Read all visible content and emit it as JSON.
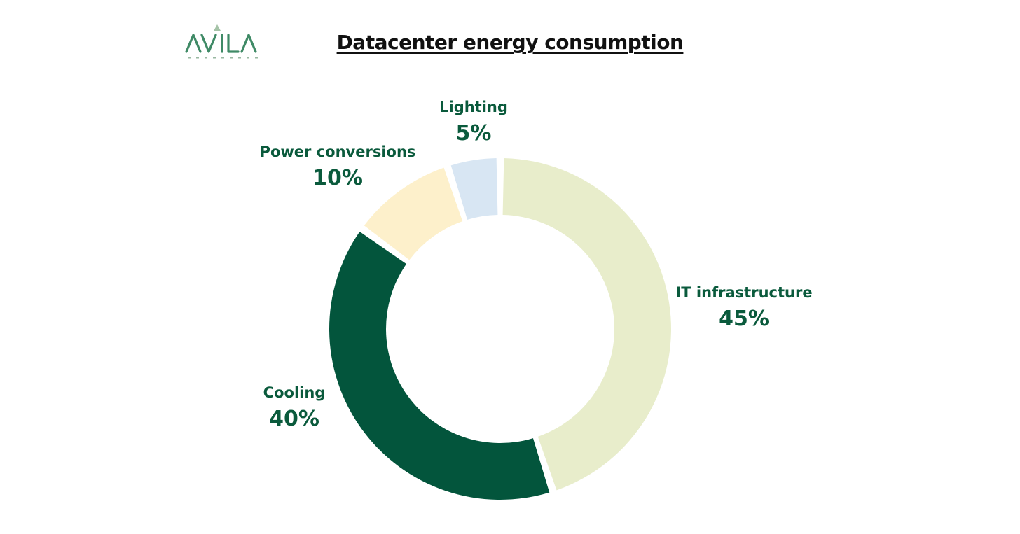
{
  "logo": {
    "wordmark": "AVILA",
    "tagline": "VENTURES"
  },
  "colors": {
    "label_text": "#0a5a3c",
    "title_text": "#111111"
  },
  "chart_data": {
    "type": "pie",
    "variant": "donut",
    "title": "Datacenter energy consumption",
    "series": [
      {
        "label": "IT infrastructure",
        "value": 45,
        "value_label": "45%",
        "color": "#e8edcb"
      },
      {
        "label": "Cooling",
        "value": 40,
        "value_label": "40%",
        "color": "#03553c"
      },
      {
        "label": "Power conversions",
        "value": 10,
        "value_label": "10%",
        "color": "#fdf0cb"
      },
      {
        "label": "Lighting",
        "value": 5,
        "value_label": "5%",
        "color": "#d8e6f3"
      }
    ]
  }
}
